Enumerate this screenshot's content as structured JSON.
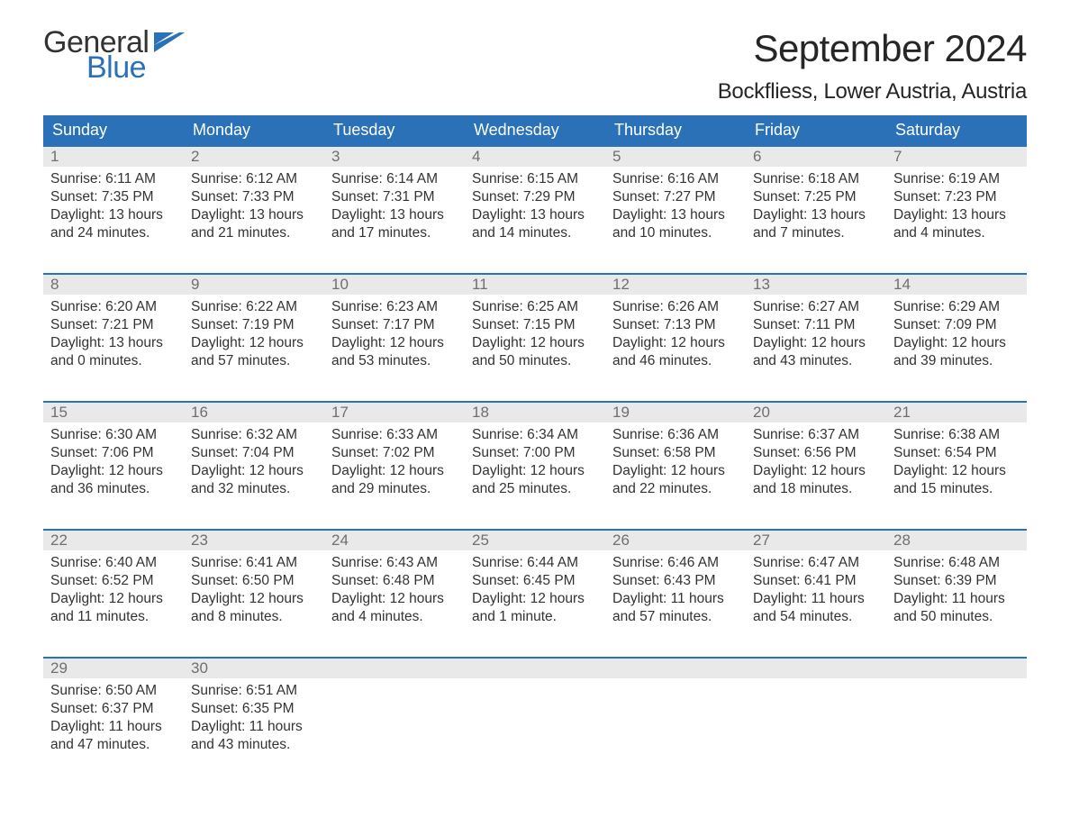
{
  "logo": {
    "word1": "General",
    "word2": "Blue"
  },
  "title": "September 2024",
  "location": "Bockfliess, Lower Austria, Austria",
  "colors": {
    "header_bg": "#2a71b8",
    "header_text": "#ffffff",
    "daynum_bg": "#e9e9e9",
    "daynum_text": "#6f6f6f",
    "body_text": "#333333",
    "accent": "#2a71b8",
    "page_bg": "#ffffff"
  },
  "weekdays": [
    "Sunday",
    "Monday",
    "Tuesday",
    "Wednesday",
    "Thursday",
    "Friday",
    "Saturday"
  ],
  "weeks": [
    [
      {
        "n": "1",
        "sunrise": "Sunrise: 6:11 AM",
        "sunset": "Sunset: 7:35 PM",
        "d1": "Daylight: 13 hours",
        "d2": "and 24 minutes."
      },
      {
        "n": "2",
        "sunrise": "Sunrise: 6:12 AM",
        "sunset": "Sunset: 7:33 PM",
        "d1": "Daylight: 13 hours",
        "d2": "and 21 minutes."
      },
      {
        "n": "3",
        "sunrise": "Sunrise: 6:14 AM",
        "sunset": "Sunset: 7:31 PM",
        "d1": "Daylight: 13 hours",
        "d2": "and 17 minutes."
      },
      {
        "n": "4",
        "sunrise": "Sunrise: 6:15 AM",
        "sunset": "Sunset: 7:29 PM",
        "d1": "Daylight: 13 hours",
        "d2": "and 14 minutes."
      },
      {
        "n": "5",
        "sunrise": "Sunrise: 6:16 AM",
        "sunset": "Sunset: 7:27 PM",
        "d1": "Daylight: 13 hours",
        "d2": "and 10 minutes."
      },
      {
        "n": "6",
        "sunrise": "Sunrise: 6:18 AM",
        "sunset": "Sunset: 7:25 PM",
        "d1": "Daylight: 13 hours",
        "d2": "and 7 minutes."
      },
      {
        "n": "7",
        "sunrise": "Sunrise: 6:19 AM",
        "sunset": "Sunset: 7:23 PM",
        "d1": "Daylight: 13 hours",
        "d2": "and 4 minutes."
      }
    ],
    [
      {
        "n": "8",
        "sunrise": "Sunrise: 6:20 AM",
        "sunset": "Sunset: 7:21 PM",
        "d1": "Daylight: 13 hours",
        "d2": "and 0 minutes."
      },
      {
        "n": "9",
        "sunrise": "Sunrise: 6:22 AM",
        "sunset": "Sunset: 7:19 PM",
        "d1": "Daylight: 12 hours",
        "d2": "and 57 minutes."
      },
      {
        "n": "10",
        "sunrise": "Sunrise: 6:23 AM",
        "sunset": "Sunset: 7:17 PM",
        "d1": "Daylight: 12 hours",
        "d2": "and 53 minutes."
      },
      {
        "n": "11",
        "sunrise": "Sunrise: 6:25 AM",
        "sunset": "Sunset: 7:15 PM",
        "d1": "Daylight: 12 hours",
        "d2": "and 50 minutes."
      },
      {
        "n": "12",
        "sunrise": "Sunrise: 6:26 AM",
        "sunset": "Sunset: 7:13 PM",
        "d1": "Daylight: 12 hours",
        "d2": "and 46 minutes."
      },
      {
        "n": "13",
        "sunrise": "Sunrise: 6:27 AM",
        "sunset": "Sunset: 7:11 PM",
        "d1": "Daylight: 12 hours",
        "d2": "and 43 minutes."
      },
      {
        "n": "14",
        "sunrise": "Sunrise: 6:29 AM",
        "sunset": "Sunset: 7:09 PM",
        "d1": "Daylight: 12 hours",
        "d2": "and 39 minutes."
      }
    ],
    [
      {
        "n": "15",
        "sunrise": "Sunrise: 6:30 AM",
        "sunset": "Sunset: 7:06 PM",
        "d1": "Daylight: 12 hours",
        "d2": "and 36 minutes."
      },
      {
        "n": "16",
        "sunrise": "Sunrise: 6:32 AM",
        "sunset": "Sunset: 7:04 PM",
        "d1": "Daylight: 12 hours",
        "d2": "and 32 minutes."
      },
      {
        "n": "17",
        "sunrise": "Sunrise: 6:33 AM",
        "sunset": "Sunset: 7:02 PM",
        "d1": "Daylight: 12 hours",
        "d2": "and 29 minutes."
      },
      {
        "n": "18",
        "sunrise": "Sunrise: 6:34 AM",
        "sunset": "Sunset: 7:00 PM",
        "d1": "Daylight: 12 hours",
        "d2": "and 25 minutes."
      },
      {
        "n": "19",
        "sunrise": "Sunrise: 6:36 AM",
        "sunset": "Sunset: 6:58 PM",
        "d1": "Daylight: 12 hours",
        "d2": "and 22 minutes."
      },
      {
        "n": "20",
        "sunrise": "Sunrise: 6:37 AM",
        "sunset": "Sunset: 6:56 PM",
        "d1": "Daylight: 12 hours",
        "d2": "and 18 minutes."
      },
      {
        "n": "21",
        "sunrise": "Sunrise: 6:38 AM",
        "sunset": "Sunset: 6:54 PM",
        "d1": "Daylight: 12 hours",
        "d2": "and 15 minutes."
      }
    ],
    [
      {
        "n": "22",
        "sunrise": "Sunrise: 6:40 AM",
        "sunset": "Sunset: 6:52 PM",
        "d1": "Daylight: 12 hours",
        "d2": "and 11 minutes."
      },
      {
        "n": "23",
        "sunrise": "Sunrise: 6:41 AM",
        "sunset": "Sunset: 6:50 PM",
        "d1": "Daylight: 12 hours",
        "d2": "and 8 minutes."
      },
      {
        "n": "24",
        "sunrise": "Sunrise: 6:43 AM",
        "sunset": "Sunset: 6:48 PM",
        "d1": "Daylight: 12 hours",
        "d2": "and 4 minutes."
      },
      {
        "n": "25",
        "sunrise": "Sunrise: 6:44 AM",
        "sunset": "Sunset: 6:45 PM",
        "d1": "Daylight: 12 hours",
        "d2": "and 1 minute."
      },
      {
        "n": "26",
        "sunrise": "Sunrise: 6:46 AM",
        "sunset": "Sunset: 6:43 PM",
        "d1": "Daylight: 11 hours",
        "d2": "and 57 minutes."
      },
      {
        "n": "27",
        "sunrise": "Sunrise: 6:47 AM",
        "sunset": "Sunset: 6:41 PM",
        "d1": "Daylight: 11 hours",
        "d2": "and 54 minutes."
      },
      {
        "n": "28",
        "sunrise": "Sunrise: 6:48 AM",
        "sunset": "Sunset: 6:39 PM",
        "d1": "Daylight: 11 hours",
        "d2": "and 50 minutes."
      }
    ],
    [
      {
        "n": "29",
        "sunrise": "Sunrise: 6:50 AM",
        "sunset": "Sunset: 6:37 PM",
        "d1": "Daylight: 11 hours",
        "d2": "and 47 minutes."
      },
      {
        "n": "30",
        "sunrise": "Sunrise: 6:51 AM",
        "sunset": "Sunset: 6:35 PM",
        "d1": "Daylight: 11 hours",
        "d2": "and 43 minutes."
      },
      {
        "empty": true
      },
      {
        "empty": true
      },
      {
        "empty": true
      },
      {
        "empty": true
      },
      {
        "empty": true
      }
    ]
  ]
}
